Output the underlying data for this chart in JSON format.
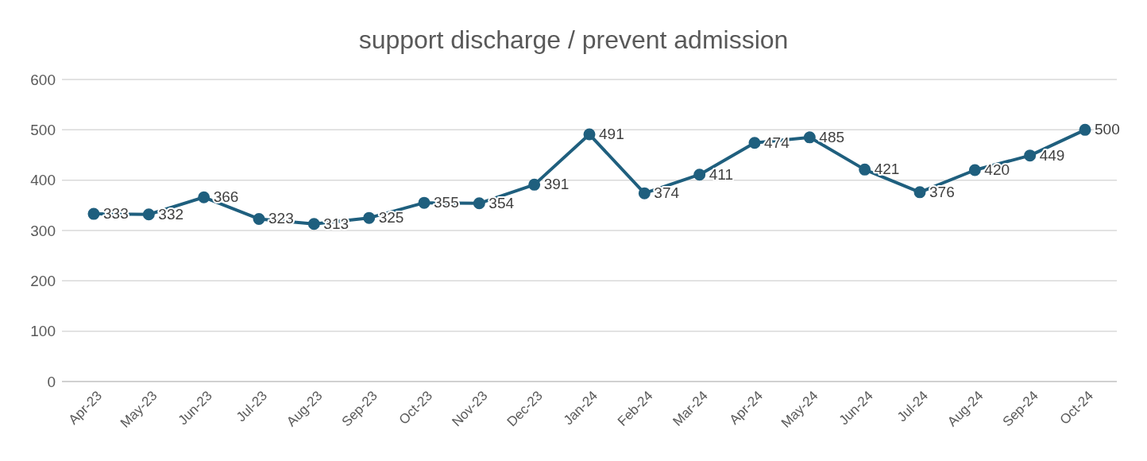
{
  "chart_data": {
    "type": "line",
    "title": "support discharge / prevent admission",
    "categories": [
      "Apr-23",
      "May-23",
      "Jun-23",
      "Jul-23",
      "Aug-23",
      "Sep-23",
      "Oct-23",
      "Nov-23",
      "Dec-23",
      "Jan-24",
      "Feb-24",
      "Mar-24",
      "Apr-24",
      "May-24",
      "Jun-24",
      "Jul-24",
      "Aug-24",
      "Sep-24",
      "Oct-24"
    ],
    "series": [
      {
        "color": "#1f5f7e",
        "values": [
          333,
          332,
          366,
          323,
          313,
          325,
          355,
          354,
          391,
          491,
          374,
          411,
          474,
          485,
          421,
          376,
          420,
          449,
          500
        ]
      }
    ],
    "ylim": [
      0,
      600
    ],
    "yticks": [
      0,
      100,
      200,
      300,
      400,
      500,
      600
    ],
    "grid": "y",
    "marker": "circle",
    "line_style": "solid",
    "data_labels": true
  }
}
